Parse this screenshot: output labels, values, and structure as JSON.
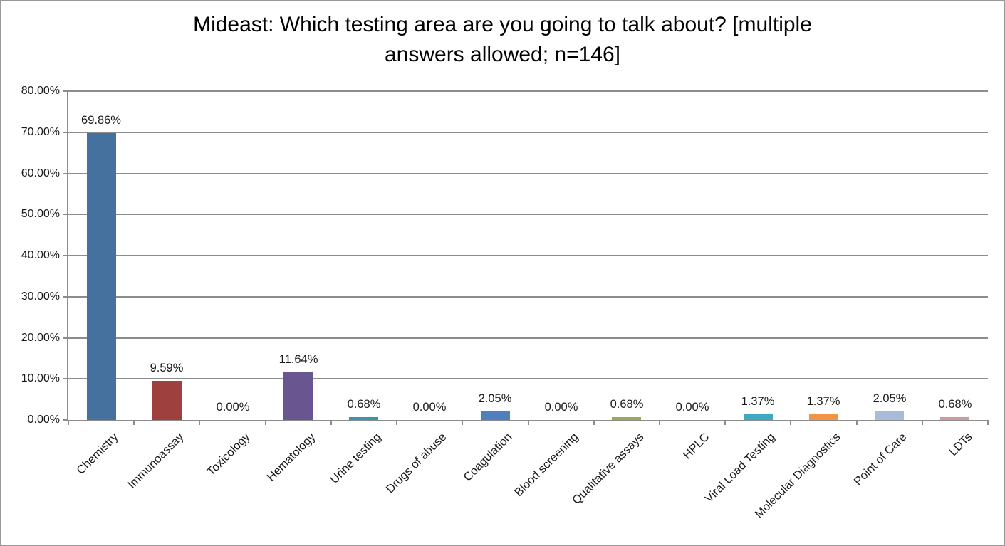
{
  "frame": {
    "background_color": "#ffffff",
    "border_color": "#999999"
  },
  "title": {
    "line1": "Mideast: Which testing area are you going to talk about? [multiple",
    "line2": "answers allowed; n=146]"
  },
  "chart_data": {
    "type": "bar",
    "title": "Mideast: Which testing area are you going to talk about? [multiple answers allowed; n=146]",
    "xlabel": "",
    "ylabel": "",
    "ylim": [
      0,
      80
    ],
    "ytick_step": 10,
    "ytick_labels": [
      "0.00%",
      "10.00%",
      "20.00%",
      "30.00%",
      "40.00%",
      "50.00%",
      "60.00%",
      "70.00%",
      "80.00%"
    ],
    "grid": true,
    "gridline_color": "#8c8c8c",
    "axis_color": "#8c8c8c",
    "legend_position": "none",
    "category_label_rotation_deg": 45,
    "categories": [
      "Chemistry",
      "Immunoassay",
      "Toxicology",
      "Hematology",
      "Urine testing",
      "Drugs of abuse",
      "Coagulation",
      "Blood screening",
      "Qualitative assays",
      "HPLC",
      "Viral Load Testing",
      "Molecular Diagnostics",
      "Point of Care",
      "LDTs"
    ],
    "values": [
      69.86,
      9.59,
      0,
      11.64,
      0.68,
      0,
      2.05,
      0,
      0.68,
      0,
      1.37,
      1.37,
      2.05,
      0.68
    ],
    "value_labels": [
      "69.86%",
      "9.59%",
      "0.00%",
      "11.64%",
      "0.68%",
      "0.00%",
      "2.05%",
      "0.00%",
      "0.68%",
      "0.00%",
      "1.37%",
      "1.37%",
      "2.05%",
      "0.68%"
    ],
    "bar_colors": [
      "#44719E",
      "#9E403D",
      "#9BBB59",
      "#695590",
      "#3E93AD",
      "#F79646",
      "#4E80BE",
      "#C0504D",
      "#97AB58",
      "#8064A2",
      "#3FA9C4",
      "#F29446",
      "#A8BBD8",
      "#CF9B98"
    ]
  }
}
